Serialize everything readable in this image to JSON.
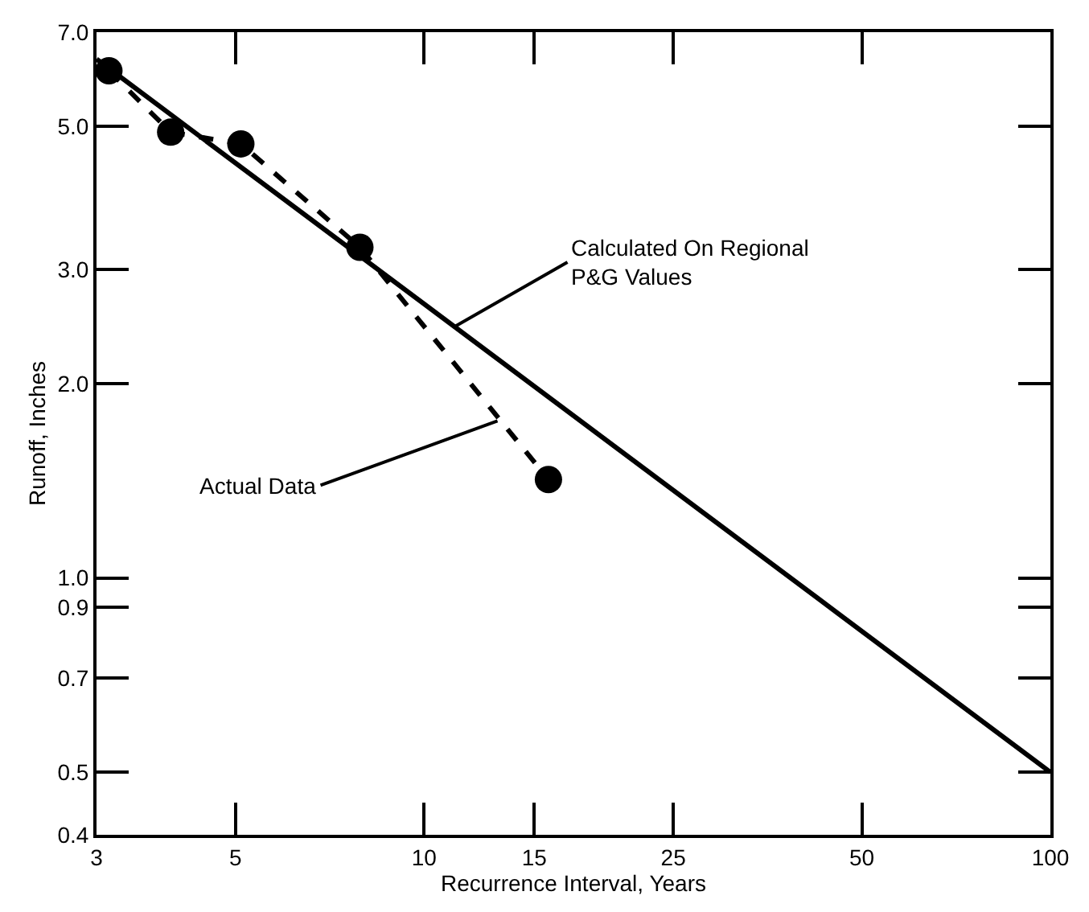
{
  "chart_data": {
    "type": "line",
    "xlabel": "Recurrence Interval, Years",
    "ylabel": "Runoff, Inches",
    "log": "xy",
    "xlim": [
      3,
      100
    ],
    "ylim": [
      0.4,
      7.0
    ],
    "xticks": [
      3,
      5,
      10,
      15,
      25,
      50,
      100
    ],
    "yticks": [
      0.4,
      0.5,
      0.7,
      0.9,
      {
        "value": 1.0,
        "label": "1.0"
      },
      {
        "value": 2.0,
        "label": "2.0"
      },
      {
        "value": 3.0,
        "label": "3.0"
      },
      {
        "value": 5.0,
        "label": "5.0"
      },
      {
        "value": 7.0,
        "label": "7.0"
      }
    ],
    "series": [
      {
        "color": "#000000",
        "marker": "none",
        "line_style": "solid",
        "x": [
          3,
          100
        ],
        "values": [
          6.36,
          0.5
        ]
      },
      {
        "color": "#000000",
        "marker": "none",
        "line_style": "dashed",
        "x": [
          3.14,
          3.94,
          5.1,
          7.9,
          15.8
        ],
        "values": [
          6.1,
          4.9,
          4.7,
          3.25,
          1.42
        ]
      },
      {
        "type": "scatter",
        "color": "#000000",
        "marker": "circle",
        "x": [
          3.14,
          3.94,
          5.1,
          7.9,
          15.8
        ],
        "values": [
          6.1,
          4.9,
          4.7,
          3.25,
          1.42
        ]
      }
    ],
    "annotations": [
      {
        "text": "Calculated On Regional\nP&G Values",
        "x": 11.2,
        "y": 2.45
      },
      {
        "text": "Actual Data",
        "x": 13.1,
        "y": 1.75
      }
    ]
  }
}
